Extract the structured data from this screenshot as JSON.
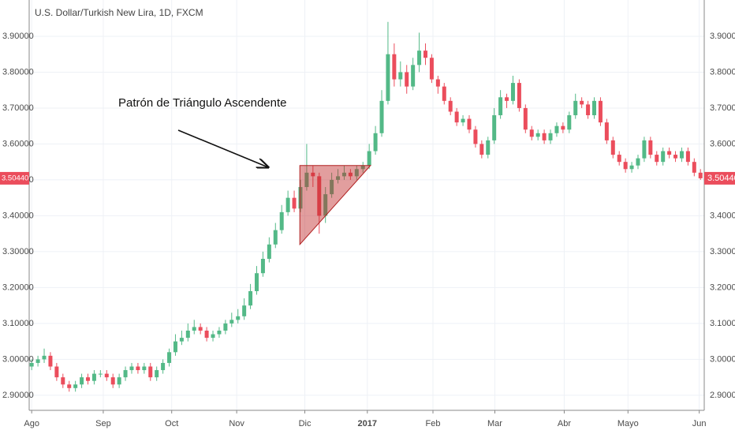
{
  "chart_data": {
    "type": "candlestick",
    "title": "U.S. Dollar/Turkish New Lira, 1D, FXCM",
    "annotation": "Patrón de Triángulo Ascendente",
    "up_color": "#53b987",
    "down_color": "#eb4d5c",
    "grid": true,
    "open": [
      2.98,
      2.99,
      3.0,
      3.01,
      2.98,
      2.95,
      2.93,
      2.92,
      2.93,
      2.95,
      2.94,
      2.96,
      2.96,
      2.95,
      2.93,
      2.95,
      2.97,
      2.98,
      2.97,
      2.98,
      2.95,
      2.97,
      2.99,
      3.02,
      3.05,
      3.06,
      3.08,
      3.09,
      3.08,
      3.06,
      3.07,
      3.08,
      3.1,
      3.11,
      3.12,
      3.15,
      3.19,
      3.24,
      3.28,
      3.32,
      3.36,
      3.41,
      3.45,
      3.42,
      3.48,
      3.52,
      3.51,
      3.4,
      3.46,
      3.5,
      3.51,
      3.52,
      3.51,
      3.53,
      3.54,
      3.58,
      3.63,
      3.72,
      3.85,
      3.78,
      3.8,
      3.76,
      3.82,
      3.86,
      3.84,
      3.78,
      3.76,
      3.72,
      3.69,
      3.66,
      3.67,
      3.64,
      3.6,
      3.57,
      3.61,
      3.68,
      3.73,
      3.72,
      3.77,
      3.7,
      3.64,
      3.62,
      3.63,
      3.61,
      3.63,
      3.65,
      3.64,
      3.68,
      3.72,
      3.71,
      3.68,
      3.72,
      3.66,
      3.61,
      3.57,
      3.55,
      3.53,
      3.54,
      3.56,
      3.61,
      3.57,
      3.55,
      3.58,
      3.57,
      3.56,
      3.58,
      3.55,
      3.52
    ],
    "high": [
      3.0,
      3.01,
      3.03,
      3.02,
      2.99,
      2.96,
      2.94,
      2.94,
      2.96,
      2.96,
      2.97,
      2.97,
      2.97,
      2.96,
      2.96,
      2.98,
      2.99,
      2.99,
      2.99,
      2.99,
      2.98,
      3.0,
      3.03,
      3.07,
      3.08,
      3.1,
      3.11,
      3.1,
      3.09,
      3.08,
      3.09,
      3.11,
      3.13,
      3.14,
      3.17,
      3.21,
      3.26,
      3.3,
      3.34,
      3.38,
      3.43,
      3.47,
      3.47,
      3.5,
      3.6,
      3.54,
      3.52,
      3.48,
      3.52,
      3.53,
      3.54,
      3.53,
      3.54,
      3.55,
      3.6,
      3.65,
      3.75,
      3.94,
      3.88,
      3.83,
      3.82,
      3.84,
      3.91,
      3.88,
      3.85,
      3.79,
      3.77,
      3.73,
      3.7,
      3.68,
      3.68,
      3.65,
      3.61,
      3.62,
      3.7,
      3.75,
      3.74,
      3.79,
      3.78,
      3.71,
      3.65,
      3.64,
      3.64,
      3.64,
      3.66,
      3.66,
      3.69,
      3.74,
      3.73,
      3.72,
      3.73,
      3.73,
      3.67,
      3.62,
      3.58,
      3.56,
      3.55,
      3.57,
      3.62,
      3.62,
      3.58,
      3.59,
      3.59,
      3.58,
      3.59,
      3.59,
      3.56,
      3.53
    ],
    "low": [
      2.97,
      2.98,
      2.99,
      2.97,
      2.94,
      2.92,
      2.91,
      2.91,
      2.92,
      2.93,
      2.93,
      2.95,
      2.94,
      2.92,
      2.92,
      2.94,
      2.96,
      2.96,
      2.96,
      2.94,
      2.94,
      2.96,
      2.98,
      3.01,
      3.04,
      3.05,
      3.07,
      3.07,
      3.05,
      3.05,
      3.06,
      3.07,
      3.09,
      3.1,
      3.11,
      3.14,
      3.18,
      3.23,
      3.27,
      3.31,
      3.35,
      3.4,
      3.41,
      3.41,
      3.47,
      3.48,
      3.35,
      3.38,
      3.45,
      3.49,
      3.5,
      3.5,
      3.5,
      3.52,
      3.53,
      3.57,
      3.62,
      3.71,
      3.76,
      3.76,
      3.74,
      3.75,
      3.8,
      3.82,
      3.77,
      3.74,
      3.71,
      3.68,
      3.65,
      3.65,
      3.63,
      3.59,
      3.56,
      3.56,
      3.6,
      3.67,
      3.7,
      3.71,
      3.69,
      3.63,
      3.61,
      3.61,
      3.6,
      3.6,
      3.62,
      3.63,
      3.63,
      3.67,
      3.7,
      3.67,
      3.67,
      3.65,
      3.6,
      3.56,
      3.54,
      3.52,
      3.52,
      3.53,
      3.55,
      3.56,
      3.54,
      3.54,
      3.56,
      3.55,
      3.55,
      3.54,
      3.51,
      3.5
    ],
    "close": [
      2.99,
      3.0,
      3.01,
      2.98,
      2.95,
      2.93,
      2.92,
      2.93,
      2.95,
      2.94,
      2.96,
      2.96,
      2.95,
      2.93,
      2.95,
      2.97,
      2.98,
      2.97,
      2.98,
      2.95,
      2.97,
      2.99,
      3.02,
      3.05,
      3.06,
      3.08,
      3.09,
      3.08,
      3.06,
      3.07,
      3.08,
      3.1,
      3.11,
      3.12,
      3.15,
      3.19,
      3.24,
      3.28,
      3.32,
      3.36,
      3.41,
      3.45,
      3.42,
      3.48,
      3.52,
      3.51,
      3.4,
      3.46,
      3.5,
      3.51,
      3.52,
      3.51,
      3.53,
      3.54,
      3.58,
      3.63,
      3.72,
      3.85,
      3.78,
      3.8,
      3.76,
      3.82,
      3.86,
      3.84,
      3.78,
      3.76,
      3.72,
      3.69,
      3.66,
      3.67,
      3.64,
      3.6,
      3.57,
      3.61,
      3.68,
      3.73,
      3.72,
      3.77,
      3.7,
      3.64,
      3.62,
      3.63,
      3.61,
      3.63,
      3.65,
      3.64,
      3.68,
      3.72,
      3.71,
      3.68,
      3.72,
      3.66,
      3.61,
      3.57,
      3.55,
      3.53,
      3.54,
      3.56,
      3.61,
      3.57,
      3.55,
      3.58,
      3.57,
      3.56,
      3.58,
      3.55,
      3.52,
      3.5044
    ],
    "last_price": {
      "value": 3.5044,
      "label": "3.50440"
    },
    "triangle": {
      "x": [
        42.9,
        54.2,
        42.9
      ],
      "y": [
        3.54,
        3.54,
        3.32
      ]
    },
    "xlim": [
      -0.4,
      107.6
    ],
    "xticks": [
      {
        "value": 0,
        "label": "Ago"
      },
      {
        "value": 11.45,
        "label": "Sep"
      },
      {
        "value": 22.4,
        "label": "Oct"
      },
      {
        "value": 32.8,
        "label": "Nov"
      },
      {
        "value": 43.7,
        "label": "Dic"
      },
      {
        "value": 53.7,
        "label": "2017"
      },
      {
        "value": 64.2,
        "label": "Feb"
      },
      {
        "value": 74.1,
        "label": "Mar"
      },
      {
        "value": 85.2,
        "label": "Abr"
      },
      {
        "value": 95.4,
        "label": "Mayo"
      },
      {
        "value": 106.8,
        "label": "Jun"
      }
    ],
    "ylim": [
      2.858,
      4.001
    ],
    "yticks": [
      {
        "value": 2.9,
        "label": "2.90000"
      },
      {
        "value": 3.0,
        "label": "3.00000"
      },
      {
        "value": 3.1,
        "label": "3.10000"
      },
      {
        "value": 3.2,
        "label": "3.20000"
      },
      {
        "value": 3.3,
        "label": "3.30000"
      },
      {
        "value": 3.4,
        "label": "3.40000"
      },
      {
        "value": 3.5,
        "label": "3.50000"
      },
      {
        "value": 3.6,
        "label": "3.60000"
      },
      {
        "value": 3.7,
        "label": "3.70000"
      },
      {
        "value": 3.8,
        "label": "3.80000"
      },
      {
        "value": 3.9,
        "label": "3.90000"
      }
    ]
  }
}
